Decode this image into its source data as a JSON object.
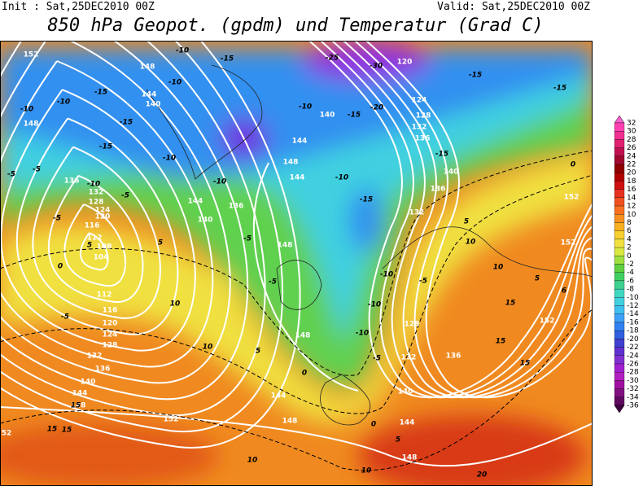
{
  "header": {
    "init": "Init : Sat,25DEC2010 00Z",
    "valid": "Valid: Sat,25DEC2010 00Z",
    "title": "850 hPa Geopot. (gpdm) und Temperatur (Grad C)"
  },
  "colorbar": {
    "labels": [
      32,
      30,
      28,
      26,
      24,
      22,
      20,
      18,
      16,
      14,
      12,
      10,
      8,
      6,
      4,
      2,
      0,
      -2,
      -4,
      -6,
      -8,
      -10,
      -12,
      -14,
      -16,
      -18,
      -20,
      -22,
      -24,
      -26,
      -28,
      -30,
      -32,
      -34,
      -36
    ],
    "colors": [
      "#ff60d0",
      "#ff40b0",
      "#f03090",
      "#e02070",
      "#c01050",
      "#a00830",
      "#900000",
      "#b00000",
      "#d01010",
      "#e83020",
      "#f05020",
      "#f87020",
      "#f89020",
      "#f8b020",
      "#f8d030",
      "#f0e040",
      "#d8e840",
      "#a0e040",
      "#60d040",
      "#40d060",
      "#40d090",
      "#40d8c0",
      "#40d0e0",
      "#40c0f0",
      "#40a0f8",
      "#3080f0",
      "#3060e0",
      "#4040d0",
      "#6030d0",
      "#8030d0",
      "#a020d0",
      "#b020c0",
      "#a010a0",
      "#801080",
      "#600860",
      "#400040"
    ]
  },
  "map": {
    "geopotential_labels": [
      "152",
      "148",
      "144",
      "140",
      "148",
      "136",
      "132",
      "128",
      "124",
      "120",
      "116",
      "112",
      "108",
      "104",
      "112",
      "116",
      "120",
      "124",
      "128",
      "132",
      "136",
      "140",
      "144",
      "148",
      "152",
      "144",
      "140",
      "144",
      "136",
      "148",
      "148",
      "144",
      "148",
      "140",
      "144",
      "148",
      "132",
      "128",
      "136",
      "152",
      "152",
      "152",
      "140",
      "136",
      "132",
      "124",
      "128",
      "132",
      "136",
      "120",
      "140",
      "144",
      "148",
      "52"
    ],
    "temperature_labels": [
      "-10",
      "-15",
      "-10",
      "-15",
      "-10",
      "-10",
      "-15",
      "-15",
      "-10",
      "-5",
      "-5",
      "-10",
      "-5",
      "-5",
      "-10",
      "-5",
      "-5",
      "-10",
      "-15",
      "-20",
      "-10",
      "-15",
      "-10",
      "-10",
      "-10",
      "-5",
      "-5",
      "-25",
      "-30",
      "-15",
      "-15",
      "-15",
      "0",
      "10",
      "10",
      "5",
      "15",
      "15",
      "15",
      "10",
      "10",
      "5",
      "0",
      "0",
      "5",
      "10",
      "10",
      "15",
      "15",
      "15",
      "20",
      "5",
      "5",
      "0",
      "-5",
      "5",
      "6"
    ]
  }
}
